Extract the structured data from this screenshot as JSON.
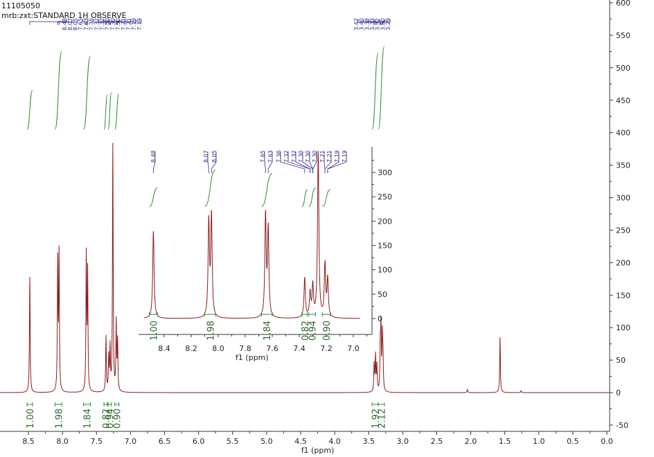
{
  "header": {
    "line1": "11105050",
    "line2": "mrb:zxt:STANDARD 1H OBSERVE"
  },
  "colors": {
    "spectrum": "#8b1a1a",
    "integral": "#2e8b2e",
    "peak_label": "#2a2a8a",
    "axis": "#333333"
  },
  "chart_data": [
    {
      "type": "line",
      "title": "",
      "xlabel": "f1 (ppm)",
      "ylabel": "",
      "xlim": [
        9.0,
        -0.05
      ],
      "ylim": [
        -60,
        600
      ],
      "x_ticks": [
        8.5,
        8.0,
        7.5,
        7.0,
        6.5,
        6.0,
        5.5,
        5.0,
        4.5,
        4.0,
        3.5,
        3.0,
        2.5,
        2.0,
        1.5,
        1.0,
        0.5,
        0.0
      ],
      "y_ticks": [
        -50,
        0,
        50,
        100,
        150,
        200,
        250,
        300,
        350,
        400,
        450,
        500,
        550,
        600
      ],
      "peaks": [
        {
          "x": 8.48,
          "y": 178
        },
        {
          "x": 8.07,
          "y": 198
        },
        {
          "x": 8.05,
          "y": 210
        },
        {
          "x": 7.65,
          "y": 208
        },
        {
          "x": 7.63,
          "y": 182
        },
        {
          "x": 7.36,
          "y": 85
        },
        {
          "x": 7.32,
          "y": 52
        },
        {
          "x": 7.3,
          "y": 66
        },
        {
          "x": 7.26,
          "y": 380
        },
        {
          "x": 7.21,
          "y": 105
        },
        {
          "x": 7.19,
          "y": 76
        },
        {
          "x": 3.42,
          "y": 42
        },
        {
          "x": 3.4,
          "y": 55
        },
        {
          "x": 3.38,
          "y": 40
        },
        {
          "x": 3.33,
          "y": 62
        },
        {
          "x": 3.32,
          "y": 92
        },
        {
          "x": 3.3,
          "y": 80
        },
        {
          "x": 3.29,
          "y": 50
        },
        {
          "x": 2.05,
          "y": 5
        },
        {
          "x": 1.57,
          "y": 85
        },
        {
          "x": 1.26,
          "y": 3
        }
      ],
      "peak_labels_left": [
        "8.48",
        "8.07",
        "8.05",
        "7.65",
        "7.63",
        "7.36",
        "7.32",
        "7.32",
        "7.30",
        "7.30",
        "7.30",
        "7.21",
        "7.21",
        "7.19",
        "7.19"
      ],
      "peak_labels_right": [
        "3.42",
        "3.40",
        "3.38",
        "3.33",
        "3.32",
        "3.30",
        "3.29"
      ],
      "integrals": [
        {
          "from": 8.52,
          "to": 8.44,
          "value": "1.00",
          "curve_bottom": 405,
          "curve_top": 465
        },
        {
          "from": 8.11,
          "to": 8.01,
          "value": "1.98",
          "curve_bottom": 405,
          "curve_top": 525
        },
        {
          "from": 7.69,
          "to": 7.59,
          "value": "1.84",
          "curve_bottom": 405,
          "curve_top": 518
        },
        {
          "from": 7.39,
          "to": 7.34,
          "value": "0.82",
          "curve_bottom": 405,
          "curve_top": 458
        },
        {
          "from": 7.33,
          "to": 7.28,
          "value": "0.94",
          "curve_bottom": 405,
          "curve_top": 462
        },
        {
          "from": 7.23,
          "to": 7.17,
          "value": "0.90",
          "curve_bottom": 405,
          "curve_top": 460
        },
        {
          "from": 3.45,
          "to": 3.36,
          "value": "1.92",
          "curve_bottom": 405,
          "curve_top": 523
        },
        {
          "from": 3.36,
          "to": 3.27,
          "value": "2.12",
          "curve_bottom": 405,
          "curve_top": 533
        }
      ]
    },
    {
      "type": "line",
      "title": "",
      "xlabel": "f1 (ppm)",
      "ylabel": "",
      "xlim": [
        8.55,
        6.95
      ],
      "ylim": [
        -15,
        345
      ],
      "x_ticks": [
        8.4,
        8.2,
        8.0,
        7.8,
        7.6,
        7.4,
        7.2,
        7.0
      ],
      "x_tick_labels": [
        "8.4",
        "8.2",
        "8.0",
        "7.8",
        "7.6",
        "7.4",
        "7.2",
        "7.0"
      ],
      "y_ticks": [
        0,
        50,
        100,
        150,
        200,
        250,
        300
      ],
      "peaks": [
        {
          "x": 8.48,
          "y": 180
        },
        {
          "x": 8.07,
          "y": 195
        },
        {
          "x": 8.05,
          "y": 208
        },
        {
          "x": 7.65,
          "y": 208
        },
        {
          "x": 7.63,
          "y": 180
        },
        {
          "x": 7.36,
          "y": 82
        },
        {
          "x": 7.32,
          "y": 50
        },
        {
          "x": 7.3,
          "y": 65
        },
        {
          "x": 7.26,
          "y": 340
        },
        {
          "x": 7.21,
          "y": 108
        },
        {
          "x": 7.19,
          "y": 78
        }
      ],
      "peak_labels": [
        "8.48",
        "8.07",
        "8.05",
        "7.65",
        "7.63",
        "7.36",
        "7.32",
        "7.32",
        "7.30",
        "7.30",
        "7.30",
        "7.21",
        "7.21",
        "7.19",
        "7.19"
      ],
      "integrals": [
        {
          "from": 8.51,
          "to": 8.45,
          "value": "1.00",
          "curve_bottom": 230,
          "curve_top": 268
        },
        {
          "from": 8.1,
          "to": 8.02,
          "value": "1.98",
          "curve_bottom": 230,
          "curve_top": 305
        },
        {
          "from": 7.68,
          "to": 7.6,
          "value": "1.84",
          "curve_bottom": 230,
          "curve_top": 298
        },
        {
          "from": 7.38,
          "to": 7.34,
          "value": "0.82",
          "curve_bottom": 230,
          "curve_top": 265
        },
        {
          "from": 7.33,
          "to": 7.28,
          "value": "0.94",
          "curve_bottom": 230,
          "curve_top": 268
        },
        {
          "from": 7.23,
          "to": 7.17,
          "value": "0.90",
          "curve_bottom": 230,
          "curve_top": 265
        }
      ]
    }
  ]
}
